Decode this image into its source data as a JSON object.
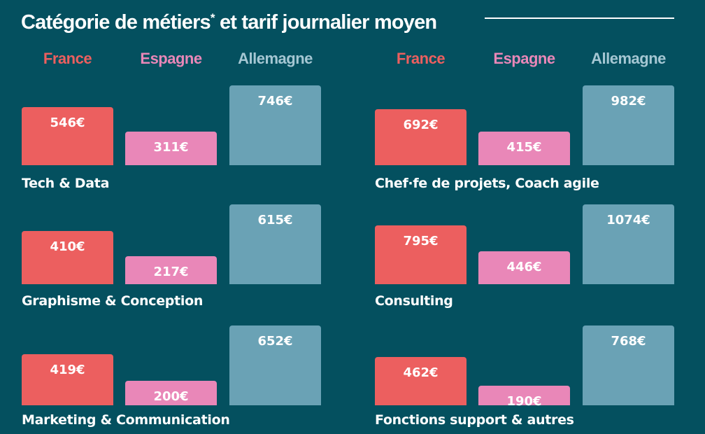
{
  "title_main": "Catégorie de métiers",
  "title_asterisk": "*",
  "title_rest": " et tarif journalier moyen",
  "colors": {
    "background": "#04505f",
    "France": "#ec5f5f",
    "Espagne": "#e987b8",
    "Allemagne": "#6aa2b5"
  },
  "chart_data": {
    "type": "bar",
    "series_names": [
      "France",
      "Espagne",
      "Allemagne"
    ],
    "unit": "€",
    "groups": [
      {
        "category": "Tech & Data",
        "values": [
          546,
          311,
          746
        ],
        "labels": [
          "546€",
          "311€",
          "746€"
        ]
      },
      {
        "category": "Chef·fe de projets, Coach agile",
        "values": [
          692,
          415,
          982
        ],
        "labels": [
          "692€",
          "415€",
          "982€"
        ]
      },
      {
        "category": "Graphisme & Conception",
        "values": [
          410,
          217,
          615
        ],
        "labels": [
          "410€",
          "217€",
          "615€"
        ]
      },
      {
        "category": "Consulting",
        "values": [
          795,
          446,
          1074
        ],
        "labels": [
          "795€",
          "446€",
          "1074€"
        ]
      },
      {
        "category": "Marketing & Communication",
        "values": [
          419,
          200,
          652
        ],
        "labels": [
          "419€",
          "200€",
          "652€"
        ]
      },
      {
        "category": "Fonctions support & autres",
        "values": [
          462,
          190,
          768
        ],
        "labels": [
          "462€",
          "190€",
          "768€"
        ]
      }
    ]
  }
}
